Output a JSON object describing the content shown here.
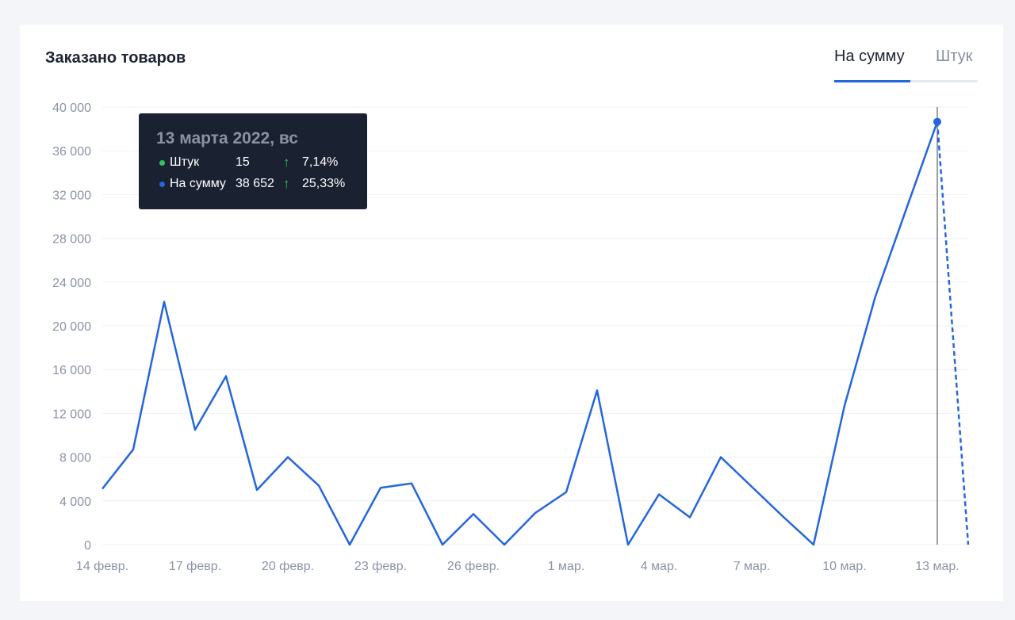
{
  "header": {
    "title": "Заказано товаров",
    "tabs": [
      {
        "label": "На сумму",
        "active": true
      },
      {
        "label": "Штук",
        "active": false
      }
    ]
  },
  "tooltip": {
    "date": "13 марта 2022, вс",
    "rows": [
      {
        "name": "Штук",
        "value": "15",
        "change": "7,14%",
        "dot_color": "#2ec55b"
      },
      {
        "name": "На сумму",
        "value": "38 652",
        "change": "25,33%",
        "dot_color": "#2466dc"
      }
    ]
  },
  "colors": {
    "line": "#2466dc",
    "grid": "#eef0f4",
    "axis_text": "#8b93a6",
    "tooltip_bg": "#1a2131",
    "up_arrow": "#2ec55b"
  },
  "chart_data": {
    "type": "line",
    "title": "Заказано товаров",
    "xlabel": "",
    "ylabel": "",
    "ylim": [
      0,
      40000
    ],
    "grid": true,
    "yticks": [
      0,
      4000,
      8000,
      12000,
      16000,
      20000,
      24000,
      28000,
      32000,
      36000,
      40000
    ],
    "ytick_labels": [
      "0",
      "4 000",
      "8 000",
      "12 000",
      "16 000",
      "20 000",
      "24 000",
      "28 000",
      "32 000",
      "36 000",
      "40 000"
    ],
    "x_tick_labels": [
      {
        "day": 0,
        "label": "14 февр."
      },
      {
        "day": 3,
        "label": "17 февр."
      },
      {
        "day": 6,
        "label": "20 февр."
      },
      {
        "day": 9,
        "label": "23 февр."
      },
      {
        "day": 12,
        "label": "26 февр."
      },
      {
        "day": 15,
        "label": "1 мар."
      },
      {
        "day": 18,
        "label": "4 мар."
      },
      {
        "day": 21,
        "label": "7 мар."
      },
      {
        "day": 24,
        "label": "10 мар."
      },
      {
        "day": 27,
        "label": "13 мар."
      }
    ],
    "series": [
      {
        "values": [
          5100,
          8700,
          22200,
          10500,
          15400,
          5000,
          8000,
          5400,
          0,
          5200,
          5600,
          0,
          2800,
          0,
          2900,
          4800,
          14100,
          0,
          4600,
          2500,
          8000,
          5300,
          2600,
          0,
          12700,
          22700,
          30700,
          38652
        ],
        "forecast_next": 0,
        "highlight_index": 27
      }
    ]
  }
}
